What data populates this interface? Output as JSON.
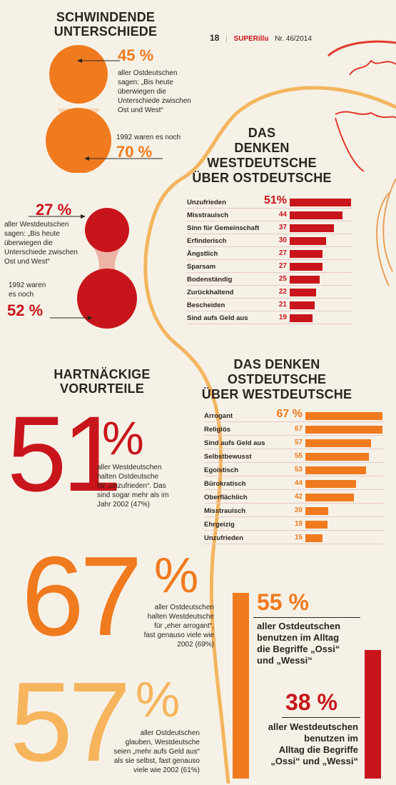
{
  "header": {
    "page_number": "18",
    "brand": "SUPERillu",
    "issue": "Nr. 46/2014"
  },
  "section1": {
    "title_line1": "SCHWINDENDE",
    "title_line2": "UNTERSCHIEDE",
    "east": {
      "pct_now": "45 %",
      "text_line1": "aller Ostdeutschen",
      "text_line2": "sagen: „Bis heute",
      "text_line3": "überwiegen die",
      "text_line4": "Unterschiede zwischen",
      "text_line5": "Ost und West“",
      "year_text": "1992 waren es noch",
      "pct_1992": "70 %",
      "value_now": 45,
      "value_1992": 70
    },
    "west": {
      "pct_now": "27 %",
      "text_line1": "aller Westdeutschen",
      "text_line2": "sagen: „Bis heute",
      "text_line3": "überwiegen die",
      "text_line4": "Unterschiede zwischen",
      "text_line5": "Ost und West“",
      "year_line1": "1992 waren",
      "year_line2": "es noch",
      "pct_1992": "52 %",
      "value_now": 27,
      "value_1992": 52
    }
  },
  "chart_west": {
    "title_line1": "DAS",
    "title_line2": "DENKEN",
    "title_line3": "WESTDEUTSCHE",
    "title_line4": "ÜBER OSTDEUTSCHE",
    "top_value_label": "51%"
  },
  "chart_east": {
    "title_line1": "DAS DENKEN",
    "title_line2": "OSTDEUTSCHE",
    "title_line3": "ÜBER WESTDEUTSCHE",
    "top_value_label": "67 %"
  },
  "chart_data": [
    {
      "type": "bar",
      "title": "DAS DENKEN WESTDEUTSCHE ÜBER OSTDEUTSCHE",
      "categories": [
        "Unzufrieden",
        "Misstrauisch",
        "Sinn für Gemeinschaft",
        "Erfinderisch",
        "Ängstlich",
        "Sparsam",
        "Bodenständig",
        "Zurückhaltend",
        "Bescheiden",
        "Sind aufs Geld aus"
      ],
      "values": [
        51,
        44,
        37,
        30,
        27,
        27,
        25,
        22,
        21,
        19
      ],
      "orientation": "horizontal",
      "color": "#c8151b"
    },
    {
      "type": "bar",
      "title": "DAS DENKEN OSTDEUTSCHE ÜBER WESTDEUTSCHE",
      "categories": [
        "Arrogant",
        "Religiös",
        "Sind aufs Geld aus",
        "Selbstbewusst",
        "Egoistisch",
        "Bürokratisch",
        "Oberflächlich",
        "Misstrauisch",
        "Ehrgeizig",
        "Unzufrieden"
      ],
      "values": [
        67,
        67,
        57,
        55,
        53,
        44,
        42,
        20,
        19,
        15
      ],
      "orientation": "horizontal",
      "color": "#f07a1e"
    }
  ],
  "section2": {
    "title_line1": "HARTNÄCKIGE",
    "title_line2": "VORURTEILE",
    "stat51": {
      "number": "51",
      "pct_sign": "%",
      "line1": "aller Westdeutschen",
      "line2": "halten Ostdeutsche",
      "line3": "für „unzufrieden“. Das",
      "line4": "sind sogar mehr als im",
      "line5": "Jahr 2002 (47%)"
    },
    "stat67": {
      "number": "67",
      "pct_sign": "%",
      "line1": "aller Ostdeutschen",
      "line2": "halten Westdeutsche",
      "line3": "für „eher arrogant“,",
      "line4": "fast genauso viele wie",
      "line5": "2002 (69%)"
    },
    "stat57": {
      "number": "57",
      "pct_sign": "%",
      "line1": "aller Ostdeutschen",
      "line2": "glauben, Westdeutsche",
      "line3": "seien „mehr aufs Geld aus“",
      "line4": "als sie selbst, fast genauso",
      "line5": "viele wie 2002 (61%)"
    }
  },
  "section3": {
    "east": {
      "pct": "55 %",
      "line1": "aller Ostdeutschen",
      "line2": "benutzen im Alltag",
      "line3": "die Begriffe „Ossi“",
      "line4": "und „Wessi“",
      "value": 55
    },
    "west": {
      "pct": "38 %",
      "line1": "aller Westdeutschen",
      "line2": "benutzen im",
      "line3": "Alltag die Begriffe",
      "line4": "„Ossi“ und „Wessi“",
      "value": 38
    }
  },
  "colors": {
    "orange": "#f07a1e",
    "red": "#c8151b",
    "light_orange": "#f6b45c",
    "background": "#f6f1e7"
  }
}
